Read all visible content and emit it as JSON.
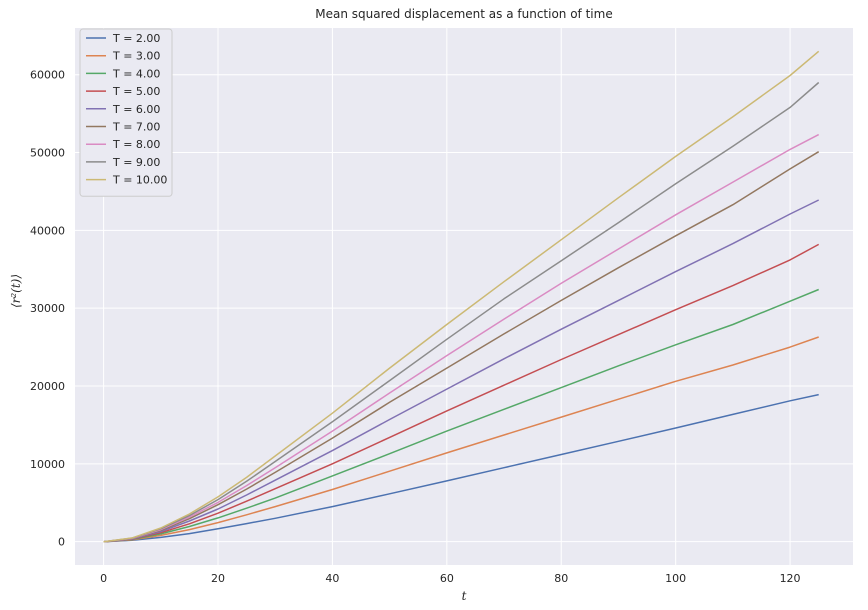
{
  "chart_data": {
    "type": "line",
    "title": "Mean squared displacement as a function of time",
    "xlabel": "t",
    "ylabel": "⟨r²(t)⟩",
    "xlim": [
      -5,
      131
    ],
    "ylim": [
      -3000,
      66000
    ],
    "x_ticks": [
      0,
      20,
      40,
      60,
      80,
      100,
      120
    ],
    "y_ticks": [
      0,
      10000,
      20000,
      30000,
      40000,
      50000,
      60000
    ],
    "grid": true,
    "legend_position": "top-left",
    "x": [
      0,
      5,
      10,
      15,
      20,
      25,
      30,
      40,
      50,
      60,
      70,
      80,
      90,
      100,
      110,
      120,
      125
    ],
    "series": [
      {
        "name": "T = 2.00",
        "color": "#4c72b0",
        "values": [
          0,
          170,
          550,
          1030,
          1650,
          2320,
          3000,
          4500,
          6150,
          7800,
          9500,
          11200,
          12900,
          14600,
          16350,
          18100,
          18900
        ]
      },
      {
        "name": "T = 3.00",
        "color": "#dd8452",
        "values": [
          0,
          230,
          800,
          1550,
          2450,
          3450,
          4500,
          6700,
          9050,
          11400,
          13700,
          16000,
          18300,
          20600,
          22700,
          25000,
          26300
        ]
      },
      {
        "name": "T = 4.00",
        "color": "#55a868",
        "values": [
          0,
          280,
          1000,
          1950,
          3050,
          4300,
          5600,
          8450,
          11300,
          14200,
          17000,
          19800,
          22600,
          25300,
          27900,
          30900,
          32400
        ]
      },
      {
        "name": "T = 5.00",
        "color": "#c44e52",
        "values": [
          0,
          320,
          1150,
          2300,
          3650,
          5200,
          6800,
          10000,
          13400,
          16800,
          20100,
          23400,
          26600,
          29800,
          32900,
          36200,
          38200
        ]
      },
      {
        "name": "T = 6.00",
        "color": "#8172b3",
        "values": [
          0,
          360,
          1300,
          2650,
          4200,
          6000,
          7900,
          11700,
          15700,
          19600,
          23500,
          27300,
          31000,
          34700,
          38300,
          42100,
          43900
        ]
      },
      {
        "name": "T = 7.00",
        "color": "#937860",
        "values": [
          0,
          400,
          1450,
          2950,
          4750,
          6750,
          8900,
          13300,
          17900,
          22300,
          26700,
          31000,
          35200,
          39300,
          43300,
          47900,
          50100
        ]
      },
      {
        "name": "T = 8.00",
        "color": "#da8bc3",
        "values": [
          0,
          420,
          1550,
          3150,
          5050,
          7200,
          9500,
          14200,
          19100,
          23900,
          28600,
          33200,
          37600,
          42000,
          46200,
          50400,
          52300
        ]
      },
      {
        "name": "T = 9.00",
        "color": "#8c8c8c",
        "values": [
          0,
          450,
          1650,
          3350,
          5400,
          7750,
          10300,
          15400,
          20700,
          26000,
          31200,
          36100,
          41000,
          46000,
          50800,
          55800,
          59000
        ]
      },
      {
        "name": "T = 10.00",
        "color": "#ccb974",
        "values": [
          0,
          480,
          1750,
          3550,
          5750,
          8250,
          11000,
          16500,
          22300,
          27900,
          33400,
          38800,
          44200,
          49500,
          54600,
          59900,
          63000
        ]
      }
    ]
  }
}
